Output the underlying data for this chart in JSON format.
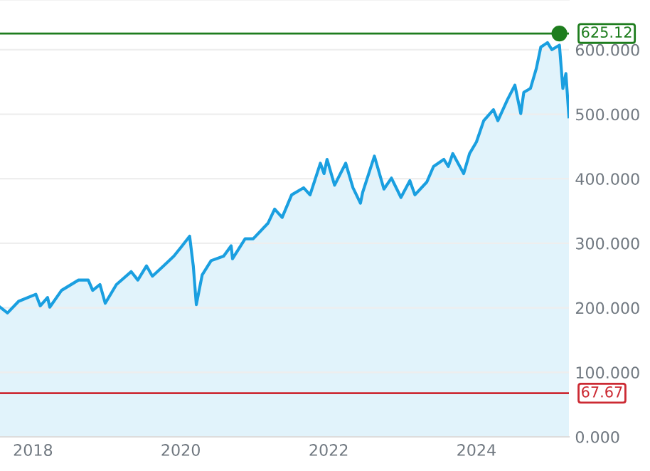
{
  "chart_data": {
    "type": "area",
    "x": [
      "2017-07-22",
      "2017-08-28",
      "2017-10-22",
      "2018-01-15",
      "2018-02-06",
      "2018-03-14",
      "2018-03-25",
      "2018-05-22",
      "2018-08-14",
      "2018-10-01",
      "2018-10-23",
      "2018-11-28",
      "2018-12-24",
      "2019-02-17",
      "2019-05-01",
      "2019-06-03",
      "2019-07-16",
      "2019-08-14",
      "2019-10-08",
      "2019-11-28",
      "2020-01-08",
      "2020-02-14",
      "2020-03-03",
      "2020-03-18",
      "2020-04-16",
      "2020-05-30",
      "2020-07-31",
      "2020-09-06",
      "2020-09-13",
      "2020-11-14",
      "2020-12-24",
      "2021-03-07",
      "2021-04-09",
      "2021-05-16",
      "2021-07-02",
      "2021-08-30",
      "2021-10-01",
      "2021-11-21",
      "2021-12-09",
      "2021-12-24",
      "2022-01-30",
      "2022-03-26",
      "2022-05-01",
      "2022-06-07",
      "2022-06-18",
      "2022-08-15",
      "2022-10-01",
      "2022-11-07",
      "2022-12-24",
      "2023-02-06",
      "2023-03-03",
      "2023-05-01",
      "2023-06-03",
      "2023-07-24",
      "2023-08-15",
      "2023-09-06",
      "2023-10-30",
      "2023-11-28",
      "2024-01-01",
      "2024-02-06",
      "2024-03-25",
      "2024-04-16",
      "2024-06-03",
      "2024-07-09",
      "2024-08-07",
      "2024-08-22",
      "2024-09-24",
      "2024-10-23",
      "2024-11-14",
      "2024-12-17",
      "2025-01-08",
      "2025-02-14",
      "2025-03-03",
      "2025-03-18",
      "2025-04-02"
    ],
    "series": [
      {
        "color": "#1a9fe0",
        "values": [
          201,
          192,
          210,
          221,
          203,
          216,
          201,
          227,
          243,
          243,
          227,
          236,
          207,
          236,
          256,
          243,
          265,
          249,
          265,
          280,
          296,
          311,
          265,
          205,
          251,
          273,
          280,
          296,
          276,
          307,
          307,
          331,
          353,
          340,
          375,
          386,
          375,
          424,
          408,
          430,
          390,
          424,
          386,
          362,
          379,
          435,
          384,
          401,
          371,
          397,
          375,
          395,
          419,
          430,
          419,
          439,
          408,
          439,
          457,
          490,
          507,
          490,
          523,
          545,
          501,
          534,
          540,
          571,
          604,
          611,
          600,
          607,
          540,
          563,
          496
        ]
      },
      {
        "type": "scatter",
        "x": [
          "2025-02-14"
        ],
        "color": "#1e7d1e",
        "values": [
          625.12
        ],
        "marker": "circle"
      }
    ],
    "xlim": [
      "2017-07-22",
      "2025-04-02"
    ],
    "xticks": [
      "2018",
      "2020",
      "2022",
      "2024"
    ],
    "ylim": [
      0,
      677
    ],
    "yticks": [
      {
        "value": 0,
        "label": "0.000"
      },
      {
        "value": 100,
        "label": "100.000"
      },
      {
        "value": 200,
        "label": "200.000"
      },
      {
        "value": 300,
        "label": "300.000"
      },
      {
        "value": 400,
        "label": "400.000"
      },
      {
        "value": 500,
        "label": "500.000"
      },
      {
        "value": 600,
        "label": "600.000"
      }
    ],
    "ref_lines": [
      {
        "axis": "y",
        "value": 625.12,
        "label": "625.12",
        "color": "#1e7d1e"
      },
      {
        "axis": "y",
        "value": 67.67,
        "label": "67.67",
        "color": "#cc2a33"
      }
    ],
    "grid": "y",
    "legend": false
  }
}
